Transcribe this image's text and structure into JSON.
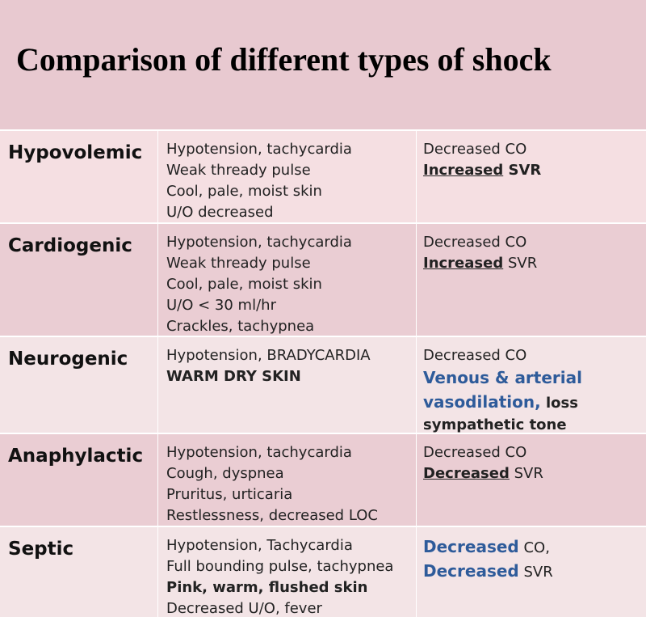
{
  "title": "Comparison of different types of shock",
  "rows": [
    {
      "type": "Hypovolemic",
      "signs": [
        [
          {
            "text": "Hypotension, tachycardia"
          }
        ],
        [
          {
            "text": "Weak thready pulse"
          }
        ],
        [
          {
            "text": "Cool, pale, moist skin"
          }
        ],
        [
          {
            "text": "U/O decreased"
          }
        ]
      ],
      "hemodynamics": [
        [
          {
            "text": "Decreased CO"
          }
        ],
        [
          {
            "text": "Increased",
            "bold": true,
            "underline": true
          },
          {
            "text": " SVR",
            "bold": true
          }
        ]
      ]
    },
    {
      "type": "Cardiogenic",
      "signs": [
        [
          {
            "text": "Hypotension, tachycardia"
          }
        ],
        [
          {
            "text": "Weak thready pulse"
          }
        ],
        [
          {
            "text": "Cool, pale, moist skin"
          }
        ],
        [
          {
            "text": "U/O < 30 ml/hr"
          }
        ],
        [
          {
            "text": "Crackles, tachypnea"
          }
        ]
      ],
      "hemodynamics": [
        [
          {
            "text": "Decreased CO"
          }
        ],
        [
          {
            "text": "Increased",
            "bold": true,
            "underline": true
          },
          {
            "text": " SVR"
          }
        ]
      ]
    },
    {
      "type": "Neurogenic",
      "signs": [
        [
          {
            "text": "Hypotension, BRADYCARDIA"
          }
        ],
        [
          {
            "text": "WARM DRY SKIN",
            "bold": true
          }
        ]
      ],
      "hemodynamics": [
        [
          {
            "text": "Decreased CO"
          }
        ],
        [
          {
            "text": "Venous & arterial",
            "color": "blue"
          }
        ],
        [
          {
            "text": "vasodilation,",
            "color": "blue"
          },
          {
            "text": " loss",
            "bold": true
          }
        ],
        [
          {
            "text": "sympathetic tone",
            "bold": true
          }
        ]
      ]
    },
    {
      "type": "Anaphylactic",
      "signs": [
        [
          {
            "text": "Hypotension, tachycardia"
          }
        ],
        [
          {
            "text": "Cough, dyspnea"
          }
        ],
        [
          {
            "text": "Pruritus, urticaria"
          }
        ],
        [
          {
            "text": "Restlessness, decreased LOC"
          }
        ]
      ],
      "hemodynamics": [
        [
          {
            "text": "Decreased CO"
          }
        ],
        [
          {
            "text": "Decreased",
            "bold": true,
            "underline": true
          },
          {
            "text": " SVR"
          }
        ]
      ]
    },
    {
      "type": "Septic",
      "signs": [
        [
          {
            "text": "Hypotension, Tachycardia"
          }
        ],
        [
          {
            "text": "Full bounding pulse, tachypnea"
          }
        ],
        [
          {
            "text": "Pink, warm, flushed skin",
            "bold": true
          }
        ],
        [
          {
            "text": "Decreased U/O, fever"
          }
        ]
      ],
      "hemodynamics": [
        [
          {
            "text": "Decreased",
            "color": "blue"
          },
          {
            "text": " CO,"
          }
        ],
        [
          {
            "text": "Decreased",
            "color": "blue"
          },
          {
            "text": " SVR"
          }
        ]
      ]
    }
  ]
}
